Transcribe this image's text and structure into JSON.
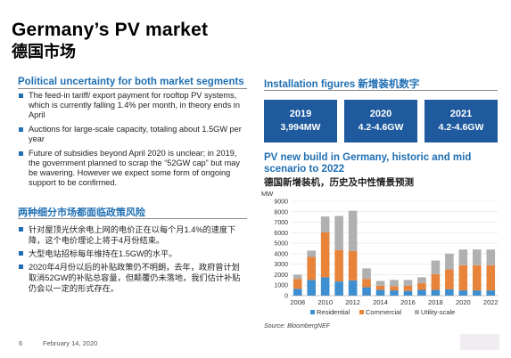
{
  "page": {
    "title_en": "Germany’s PV market",
    "title_cn": "德国市场",
    "page_number": "6",
    "date": "February 14, 2020"
  },
  "left": {
    "heading": "Political uncertainty for both market segments",
    "bullets": [
      "The feed-in tariff/ export payment for rooftop PV systems, which is currently falling 1.4% per month, in theory ends in April",
      "Auctions for large-scale capacity, totaling about 1.5GW per year",
      "Future of subsidies beyond April 2020 is unclear; in 2019, the government planned to scrap the “52GW cap” but may be wavering. However we expect some form of ongoing support to be confirmed."
    ],
    "cn_heading": "两种细分市场都面临政策风险",
    "cn_bullets": [
      "针对屋顶光伏余电上网的电价正在以每个月1.4%的速度下降，这个电价理论上将于4月份结束。",
      "大型电站招标每年维持在1.5GW的水平。",
      "2020年4月份以后的补贴政策仍不明朗，去年，政府曾计划取消52GW的补贴总容量，但颠覆仍未落地，我们估计补贴仍会以一定的形式存在。"
    ]
  },
  "right": {
    "heading": "Installation figures 新增装机数字",
    "boxes": [
      {
        "year": "2019",
        "value": "3,994MW"
      },
      {
        "year": "2020",
        "value": "4.2-4.6GW"
      },
      {
        "year": "2021",
        "value": "4.2-4.6GW"
      }
    ],
    "chart_title": "PV new build in Germany, historic and mid scenario to 2022",
    "chart_title_cn": "德国新增装机，历史及中性情景预测",
    "source": "Source: BloombergNEF"
  },
  "colors": {
    "accent": "#1f6fb2",
    "box_bg": "#1f5a9e",
    "residential": "#3d8fd1",
    "commercial": "#e8833a",
    "utility": "#b0b0b0"
  },
  "chart_data": {
    "type": "bar",
    "stacked": true,
    "ylabel": "MW",
    "ylim": [
      0,
      9000
    ],
    "yticks": [
      0,
      1000,
      2000,
      3000,
      4000,
      5000,
      6000,
      7000,
      8000,
      9000
    ],
    "x": [
      2008,
      2009,
      2010,
      2011,
      2012,
      2013,
      2014,
      2015,
      2016,
      2017,
      2018,
      2019,
      2020,
      2021,
      2022
    ],
    "xtick_labels": [
      "2008",
      "2010",
      "2012",
      "2014",
      "2016",
      "2018",
      "2020",
      "2022"
    ],
    "legend": [
      "Residential",
      "Commercial",
      "Utility-scale"
    ],
    "series": [
      {
        "name": "Residential",
        "values": [
          650,
          1500,
          1750,
          1350,
          1450,
          800,
          550,
          500,
          450,
          550,
          550,
          600,
          500,
          500,
          500
        ]
      },
      {
        "name": "Commercial",
        "values": [
          950,
          2200,
          4300,
          3000,
          2800,
          800,
          400,
          400,
          500,
          650,
          1500,
          1900,
          2400,
          2400,
          2400
        ]
      },
      {
        "name": "Utility-scale",
        "values": [
          400,
          600,
          1500,
          3250,
          3850,
          1000,
          450,
          600,
          550,
          550,
          1300,
          1500,
          1500,
          1500,
          1500
        ]
      }
    ]
  }
}
